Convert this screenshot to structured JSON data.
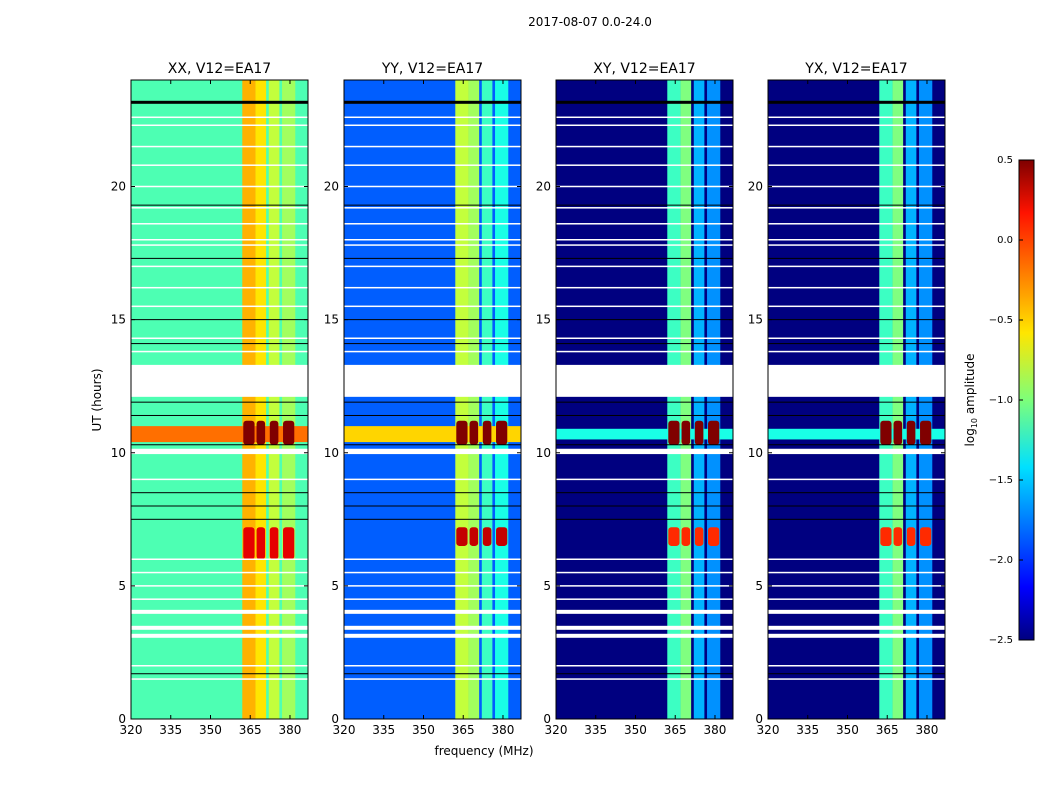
{
  "chart_data": {
    "type": "heatmap",
    "suptitle": "2017-08-07 0.0-24.0",
    "xlabel": "frequency (MHz)",
    "ylabel": "UT (hours)",
    "xlim": [
      320,
      386.8
    ],
    "ylim": [
      0,
      24
    ],
    "xticks": [
      "320",
      "335",
      "350",
      "365",
      "380"
    ],
    "xtick_values": [
      320,
      335,
      350,
      365,
      380
    ],
    "yticks": [
      "0",
      "5",
      "10",
      "15",
      "20"
    ],
    "ytick_values": [
      0,
      5,
      10,
      15,
      20
    ],
    "colorbar": {
      "label": "log10 amplitude",
      "label_main": "log",
      "label_sub": "10",
      "label_rest": " amplitude",
      "range": [
        -2.5,
        0.5
      ],
      "ticks": [
        "0.5",
        "0.0",
        "−0.5",
        "−1.0",
        "−1.5",
        "−2.0",
        "−2.5"
      ],
      "tick_values": [
        0.5,
        0,
        -0.5,
        -1,
        -1.5,
        -2,
        -2.5
      ],
      "colormap": "jet"
    },
    "panels": [
      {
        "title": "XX, V12=EA17",
        "background": -1.15,
        "bands": [
          [
            362,
            367,
            -0.4
          ],
          [
            367,
            371,
            -0.55
          ],
          [
            372,
            376,
            -0.8
          ],
          [
            377,
            382,
            -0.9
          ]
        ],
        "hot_row": [
          10.4,
          11.0,
          -0.2
        ],
        "hot_cells": [
          [
            6.0,
            7.2,
            0.2
          ],
          [
            10.3,
            11.2,
            0.5
          ]
        ]
      },
      {
        "title": "YY, V12=EA17",
        "background": -1.85,
        "bands": [
          [
            362,
            367,
            -0.8
          ],
          [
            367,
            371,
            -0.9
          ],
          [
            372,
            376,
            -1.2
          ],
          [
            377,
            382,
            -1.3
          ]
        ],
        "hot_row": [
          10.4,
          11.0,
          -0.5
        ],
        "hot_cells": [
          [
            6.5,
            7.2,
            0.3
          ],
          [
            10.3,
            11.2,
            0.5
          ]
        ]
      },
      {
        "title": "XY, V12=EA17",
        "background": -2.5,
        "bands": [
          [
            362,
            367,
            -1.2
          ],
          [
            367,
            371,
            -1.0
          ],
          [
            372,
            376,
            -1.6
          ],
          [
            377,
            382,
            -1.7
          ]
        ],
        "hot_row": [
          10.5,
          10.9,
          -1.3
        ],
        "hot_cells": [
          [
            6.5,
            7.2,
            0.0
          ],
          [
            10.3,
            11.2,
            0.5
          ]
        ]
      },
      {
        "title": "YX, V12=EA17",
        "background": -2.5,
        "bands": [
          [
            362,
            367,
            -1.2
          ],
          [
            367,
            371,
            -1.0
          ],
          [
            372,
            376,
            -1.6
          ],
          [
            377,
            382,
            -1.7
          ]
        ],
        "hot_row": [
          10.5,
          10.9,
          -1.3
        ],
        "hot_cells": [
          [
            6.5,
            7.2,
            0.0
          ],
          [
            10.3,
            11.2,
            0.5
          ]
        ]
      }
    ],
    "flagged_gaps_hours": [
      [
        12.1,
        13.3
      ],
      [
        3.05,
        3.2
      ],
      [
        3.35,
        3.5
      ],
      [
        9.95,
        10.15
      ],
      [
        3.95,
        4.1
      ]
    ],
    "white_lines_hours": [
      1.5,
      2.0,
      4.5,
      5.0,
      5.5,
      6.0,
      9.0,
      13.8,
      14.3,
      15.5,
      16.2,
      17.0,
      17.8,
      18.0,
      18.6,
      19.2,
      20.0,
      20.8,
      21.5,
      22.3,
      22.6
    ],
    "black_lines_hours": [
      1.7,
      7.5,
      8.0,
      8.5,
      10.3,
      11.4,
      11.9,
      14.1,
      15.0,
      17.3,
      19.3,
      23.2
    ]
  }
}
